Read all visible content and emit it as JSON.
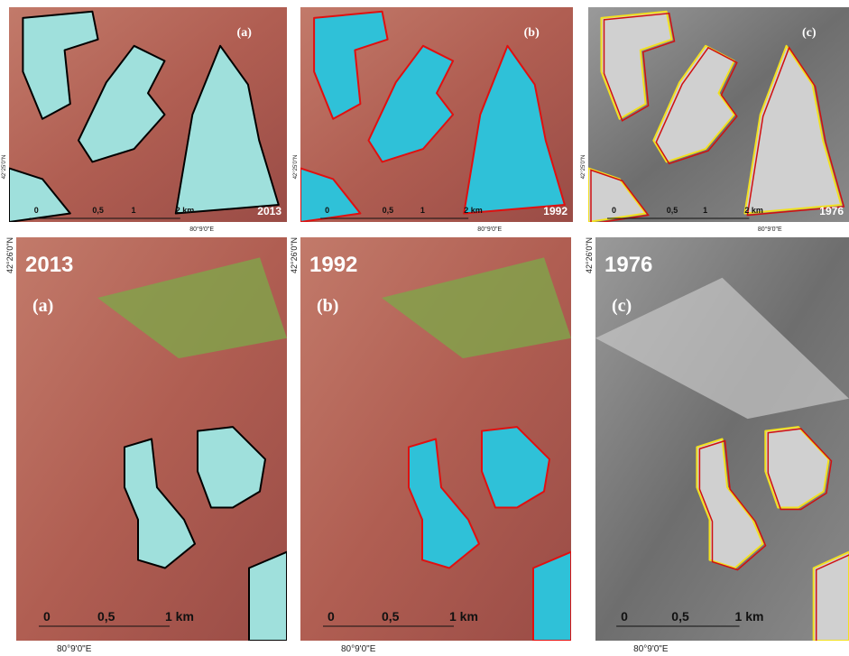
{
  "panels": [
    {
      "label": "(a)",
      "year": "2013",
      "scale": [
        "0",
        "0,5",
        "1",
        "2 km"
      ],
      "lon": "80°9'0\"E",
      "lat": "42°25'0\"N"
    },
    {
      "label": "(b)",
      "year": "1992",
      "scale": [
        "0",
        "0,5",
        "1",
        "2 km"
      ],
      "lon": "80°9'0\"E",
      "lat": "42°25'0\"N"
    },
    {
      "label": "(c)",
      "year": "1976",
      "scale": [
        "0",
        "0,5",
        "1",
        "2 km"
      ],
      "lon": "80°9'0\"E",
      "lat": "42°25'0\"N"
    },
    {
      "label": "(a)",
      "year": "2013",
      "scale": [
        "0",
        "0,5",
        "1 km"
      ],
      "lon": "80°9'0\"E",
      "lat": "42°26'0\"N"
    },
    {
      "label": "(b)",
      "year": "1992",
      "scale": [
        "0",
        "0,5",
        "1 km"
      ],
      "lon": "80°9'0\"E",
      "lat": "42°26'0\"N"
    },
    {
      "label": "(c)",
      "year": "1976",
      "scale": [
        "0",
        "0,5",
        "1 km"
      ],
      "lon": "80°9'0\"E",
      "lat": "42°26'0\"N"
    }
  ]
}
